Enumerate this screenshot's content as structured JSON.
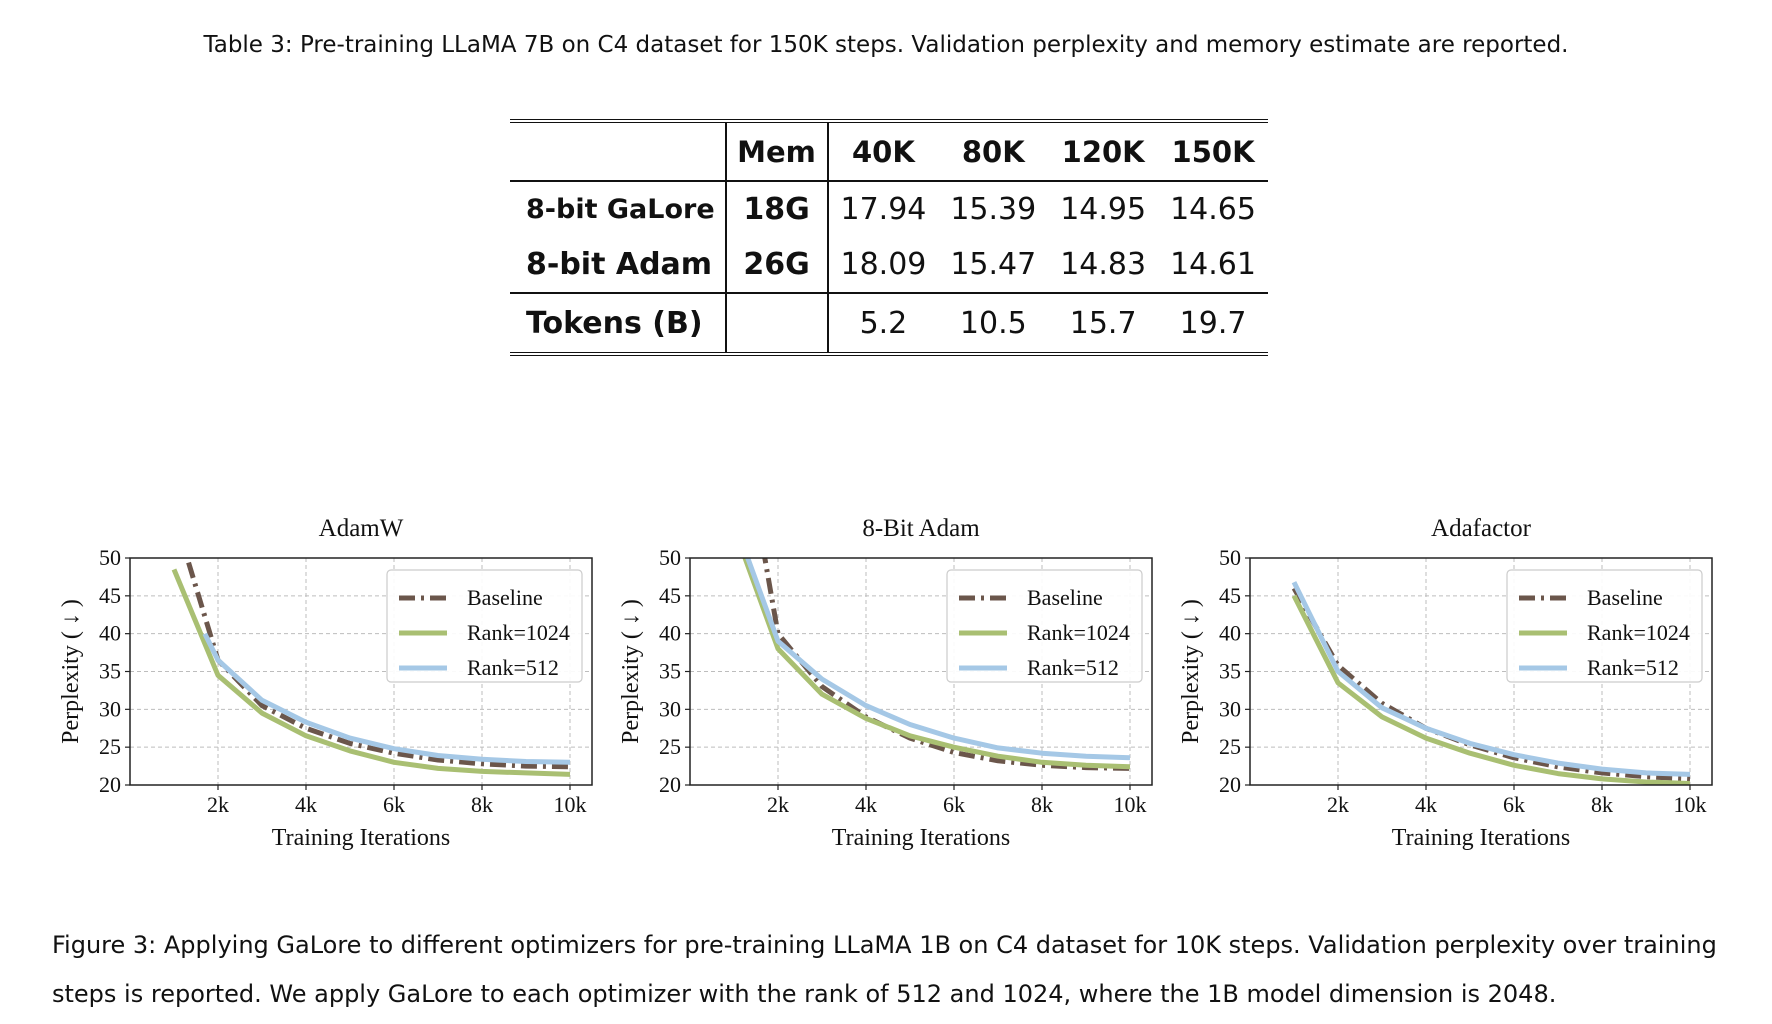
{
  "table": {
    "caption": "Table 3: Pre-training LLaMA 7B on C4 dataset for 150K steps. Validation perplexity and memory estimate are reported.",
    "headers": [
      "",
      "Mem",
      "40K",
      "80K",
      "120K",
      "150K"
    ],
    "rows": [
      {
        "label": "8-bit GaLore",
        "mem": "18G",
        "values": [
          "17.94",
          "15.39",
          "14.95",
          "14.65"
        ]
      },
      {
        "label": "8-bit Adam",
        "mem": "26G",
        "values": [
          "18.09",
          "15.47",
          "14.83",
          "14.61"
        ]
      }
    ],
    "tokens": {
      "label": "Tokens (B)",
      "mem": "",
      "values": [
        "5.2",
        "10.5",
        "15.7",
        "19.7"
      ]
    }
  },
  "chart_data": [
    {
      "type": "line",
      "title": "AdamW",
      "xlabel": "Training Iterations",
      "ylabel": "Perplexity ( ↓ )",
      "xlim": [
        0,
        10500
      ],
      "ylim": [
        20,
        50
      ],
      "xticks": [
        2000,
        4000,
        6000,
        8000,
        10000
      ],
      "xtick_labels": [
        "2k",
        "4k",
        "6k",
        "8k",
        "10k"
      ],
      "yticks": [
        20,
        25,
        30,
        35,
        40,
        45,
        50
      ],
      "grid": true,
      "legend_position": "top-right",
      "series": [
        {
          "name": "Baseline",
          "color": "#6b564b",
          "dash": "dashdot",
          "x": [
            1000,
            1300,
            2000,
            3000,
            4000,
            5000,
            6000,
            7000,
            8000,
            9000,
            10000
          ],
          "y": [
            53,
            50,
            36.5,
            30.5,
            27.5,
            25.5,
            24.2,
            23.3,
            22.8,
            22.5,
            22.4
          ]
        },
        {
          "name": "Rank=1024",
          "color": "#a9bf72",
          "dash": "solid",
          "x": [
            1000,
            2000,
            3000,
            4000,
            5000,
            6000,
            7000,
            8000,
            9000,
            10000
          ],
          "y": [
            48.5,
            34.5,
            29.5,
            26.5,
            24.5,
            23.0,
            22.2,
            21.8,
            21.6,
            21.4
          ]
        },
        {
          "name": "Rank=512",
          "color": "#a5c8e6",
          "dash": "solid",
          "x": [
            1700,
            2000,
            3000,
            4000,
            5000,
            6000,
            7000,
            8000,
            9000,
            10000
          ],
          "y": [
            40,
            36.5,
            31.2,
            28.3,
            26.2,
            24.8,
            23.9,
            23.4,
            23.1,
            23.0
          ]
        }
      ]
    },
    {
      "type": "line",
      "title": "8-Bit Adam",
      "xlabel": "Training Iterations",
      "ylabel": "Perplexity ( ↓ )",
      "xlim": [
        0,
        10500
      ],
      "ylim": [
        20,
        50
      ],
      "xticks": [
        2000,
        4000,
        6000,
        8000,
        10000
      ],
      "xtick_labels": [
        "2k",
        "4k",
        "6k",
        "8k",
        "10k"
      ],
      "yticks": [
        20,
        25,
        30,
        35,
        40,
        45,
        50
      ],
      "grid": true,
      "legend_position": "top-right",
      "series": [
        {
          "name": "Baseline",
          "color": "#6b564b",
          "dash": "dashdot",
          "x": [
            1300,
            1700,
            2000,
            3000,
            4000,
            5000,
            6000,
            7000,
            8000,
            9000,
            10000
          ],
          "y": [
            55,
            50,
            40,
            33,
            29,
            26.2,
            24.3,
            23.2,
            22.6,
            22.3,
            22.2
          ]
        },
        {
          "name": "Rank=1024",
          "color": "#a9bf72",
          "dash": "solid",
          "x": [
            1000,
            2000,
            3000,
            4000,
            5000,
            6000,
            7000,
            8000,
            9000,
            10000
          ],
          "y": [
            54,
            38,
            32,
            28.8,
            26.5,
            25.0,
            23.8,
            23.0,
            22.6,
            22.4
          ]
        },
        {
          "name": "Rank=512",
          "color": "#a5c8e6",
          "dash": "solid",
          "x": [
            1000,
            2000,
            3000,
            4000,
            5000,
            6000,
            7000,
            8000,
            9000,
            10000
          ],
          "y": [
            55,
            39,
            34,
            30.5,
            28.0,
            26.2,
            24.9,
            24.2,
            23.8,
            23.6
          ]
        }
      ]
    },
    {
      "type": "line",
      "title": "Adafactor",
      "xlabel": "Training Iterations",
      "ylabel": "Perplexity ( ↓ )",
      "xlim": [
        0,
        10500
      ],
      "ylim": [
        20,
        50
      ],
      "xticks": [
        2000,
        4000,
        6000,
        8000,
        10000
      ],
      "xtick_labels": [
        "2k",
        "4k",
        "6k",
        "8k",
        "10k"
      ],
      "yticks": [
        20,
        25,
        30,
        35,
        40,
        45,
        50
      ],
      "grid": true,
      "legend_position": "top-right",
      "series": [
        {
          "name": "Baseline",
          "color": "#6b564b",
          "dash": "dashdot",
          "x": [
            1000,
            2000,
            3000,
            4000,
            5000,
            6000,
            7000,
            8000,
            9000,
            10000
          ],
          "y": [
            46,
            35.8,
            30.8,
            27.5,
            25.3,
            23.6,
            22.4,
            21.6,
            21.1,
            20.8
          ]
        },
        {
          "name": "Rank=1024",
          "color": "#a9bf72",
          "dash": "solid",
          "x": [
            1000,
            2000,
            3000,
            4000,
            5000,
            6000,
            7000,
            8000,
            9000,
            10000
          ],
          "y": [
            45,
            33.5,
            29,
            26.2,
            24.2,
            22.6,
            21.5,
            20.8,
            20.4,
            20.2
          ]
        },
        {
          "name": "Rank=512",
          "color": "#a5c8e6",
          "dash": "solid",
          "x": [
            1000,
            2000,
            3000,
            4000,
            5000,
            6000,
            7000,
            8000,
            9000,
            10000
          ],
          "y": [
            46.8,
            35,
            30.2,
            27.5,
            25.5,
            24.0,
            22.9,
            22.1,
            21.6,
            21.4
          ]
        }
      ]
    }
  ],
  "figure_caption": "Figure 3: Applying GaLore to different optimizers for pre-training LLaMA 1B on C4 dataset for 10K steps. Validation perplexity over training steps is reported. We apply GaLore to each optimizer with the rank of 512 and 1024, where the 1B model dimension is 2048."
}
